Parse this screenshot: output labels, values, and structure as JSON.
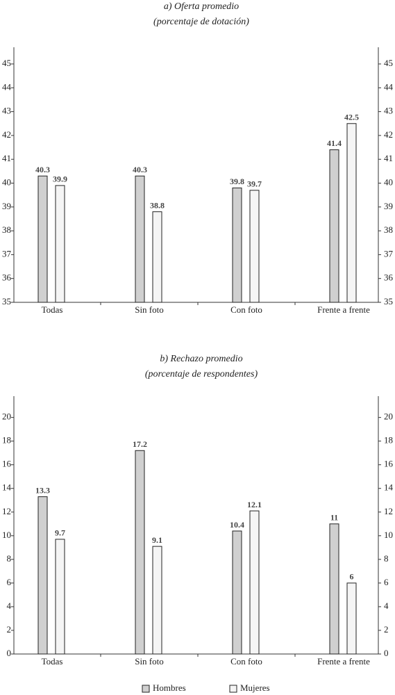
{
  "chart_data": [
    {
      "type": "bar",
      "title": "a) Oferta promedio",
      "subtitle": "(porcentaje de dotación)",
      "categories": [
        "Todas",
        "Sin foto",
        "Con foto",
        "Frente a frente"
      ],
      "series": [
        {
          "name": "Hombres",
          "color": "#d0d0d0",
          "values": [
            40.3,
            40.3,
            39.8,
            41.4
          ]
        },
        {
          "name": "Mujeres",
          "color": "#f5f5f5",
          "values": [
            39.9,
            38.8,
            39.7,
            42.5
          ]
        }
      ],
      "ylim": [
        35,
        45.7
      ],
      "yticks": [
        35,
        36,
        37,
        38,
        39,
        40,
        41,
        42,
        43,
        44,
        45
      ],
      "legend": "bottom"
    },
    {
      "type": "bar",
      "title": "b) Rechazo promedio",
      "subtitle": "(porcentaje de respondentes)",
      "categories": [
        "Todas",
        "Sin foto",
        "Con foto",
        "Frente a frente"
      ],
      "series": [
        {
          "name": "Hombres",
          "color": "#d0d0d0",
          "values": [
            13.3,
            17.2,
            10.4,
            11
          ]
        },
        {
          "name": "Mujeres",
          "color": "#f5f5f5",
          "values": [
            9.7,
            9.1,
            12.1,
            6
          ]
        }
      ],
      "ylim": [
        0,
        21.8
      ],
      "yticks": [
        0,
        2,
        4,
        6,
        8,
        10,
        12,
        14,
        16,
        18,
        20
      ],
      "legend": "bottom"
    }
  ]
}
